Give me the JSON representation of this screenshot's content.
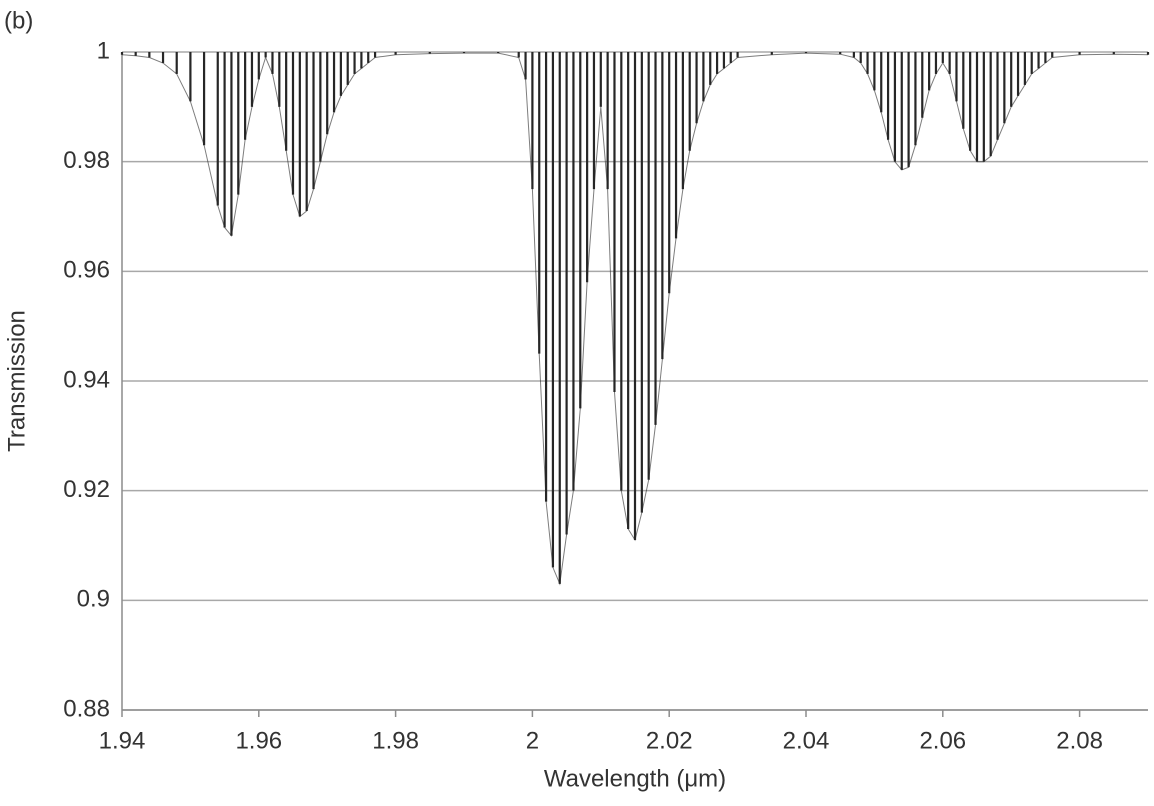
{
  "chart_data": {
    "type": "stem",
    "annotation": "(b)",
    "x_label": "Wavelength (μm)",
    "y_label": "Transmission",
    "color": "#262626",
    "grid": true,
    "xlim": [
      1.94,
      2.09
    ],
    "xticks": [
      1.94,
      1.96,
      1.98,
      2,
      2.02,
      2.04,
      2.06,
      2.08
    ],
    "ylim": [
      0.88,
      1
    ],
    "yticks": [
      0.88,
      0.9,
      0.92,
      0.94,
      0.96,
      0.98,
      1
    ],
    "x": [
      1.94,
      1.942,
      1.944,
      1.946,
      1.948,
      1.95,
      1.952,
      1.954,
      1.955,
      1.956,
      1.957,
      1.958,
      1.959,
      1.96,
      1.961,
      1.962,
      1.963,
      1.964,
      1.965,
      1.966,
      1.967,
      1.968,
      1.969,
      1.97,
      1.971,
      1.972,
      1.973,
      1.974,
      1.975,
      1.976,
      1.977,
      1.98,
      1.985,
      1.99,
      1.995,
      1.998,
      1.999,
      2.0,
      2.001,
      2.002,
      2.003,
      2.004,
      2.005,
      2.006,
      2.007,
      2.008,
      2.009,
      2.01,
      2.011,
      2.012,
      2.013,
      2.014,
      2.015,
      2.016,
      2.017,
      2.018,
      2.019,
      2.02,
      2.021,
      2.022,
      2.023,
      2.024,
      2.025,
      2.026,
      2.027,
      2.028,
      2.029,
      2.03,
      2.035,
      2.04,
      2.045,
      2.047,
      2.048,
      2.049,
      2.05,
      2.051,
      2.052,
      2.053,
      2.054,
      2.055,
      2.056,
      2.057,
      2.058,
      2.059,
      2.06,
      2.061,
      2.062,
      2.063,
      2.064,
      2.065,
      2.066,
      2.067,
      2.068,
      2.069,
      2.07,
      2.071,
      2.072,
      2.073,
      2.074,
      2.075,
      2.076,
      2.08,
      2.085,
      2.09
    ],
    "values": [
      0.9995,
      0.9993,
      0.999,
      0.998,
      0.996,
      0.991,
      0.983,
      0.972,
      0.968,
      0.9665,
      0.974,
      0.984,
      0.99,
      0.995,
      0.999,
      0.996,
      0.99,
      0.982,
      0.974,
      0.97,
      0.971,
      0.975,
      0.98,
      0.985,
      0.989,
      0.992,
      0.994,
      0.996,
      0.997,
      0.998,
      0.999,
      0.9995,
      0.9997,
      0.9998,
      0.9998,
      0.999,
      0.995,
      0.975,
      0.945,
      0.918,
      0.906,
      0.903,
      0.912,
      0.92,
      0.935,
      0.958,
      0.975,
      0.99,
      0.975,
      0.938,
      0.92,
      0.913,
      0.911,
      0.916,
      0.922,
      0.932,
      0.944,
      0.956,
      0.966,
      0.975,
      0.982,
      0.987,
      0.991,
      0.994,
      0.996,
      0.997,
      0.998,
      0.999,
      0.9995,
      0.9998,
      0.9996,
      0.999,
      0.998,
      0.996,
      0.993,
      0.989,
      0.984,
      0.98,
      0.9785,
      0.979,
      0.983,
      0.988,
      0.993,
      0.996,
      0.998,
      0.996,
      0.991,
      0.986,
      0.982,
      0.98,
      0.98,
      0.981,
      0.984,
      0.987,
      0.99,
      0.992,
      0.994,
      0.996,
      0.997,
      0.998,
      0.999,
      0.9995,
      0.9996,
      0.9995
    ]
  }
}
